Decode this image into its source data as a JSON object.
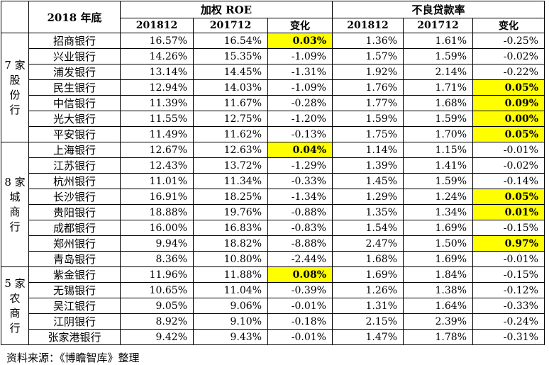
{
  "colors": {
    "highlight": "#FFFF00",
    "border": "#000000",
    "text": "#000000",
    "background": "#FFFFFF"
  },
  "table": {
    "corner_label": "",
    "year_header": "2018 年底",
    "roe_header": "加权 ROE",
    "npl_header": "不良贷款率",
    "sub_headers": [
      "201812",
      "201712",
      "变化"
    ],
    "groups": [
      {
        "name": "7家股份行",
        "label_lines": [
          "7 家",
          "股",
          "份",
          "行"
        ],
        "row_count": 7
      },
      {
        "name": "8家城商行",
        "label_lines": [
          "8 家",
          "城",
          "商",
          "行"
        ],
        "row_count": 8
      },
      {
        "name": "5家农商行",
        "label_lines": [
          "5 家",
          "农",
          "商",
          "行"
        ],
        "row_count": 5
      }
    ],
    "rows": [
      {
        "group": 0,
        "bank": "招商银行",
        "roe_201812": "16.57%",
        "roe_201712": "16.54%",
        "roe_change": "0.03%",
        "roe_change_highlight": true,
        "npl_201812": "1.36%",
        "npl_201712": "1.61%",
        "npl_change": "-0.25%",
        "npl_change_highlight": false
      },
      {
        "group": 0,
        "bank": "兴业银行",
        "roe_201812": "14.26%",
        "roe_201712": "15.35%",
        "roe_change": "-1.09%",
        "roe_change_highlight": false,
        "npl_201812": "1.57%",
        "npl_201712": "1.59%",
        "npl_change": "-0.02%",
        "npl_change_highlight": false
      },
      {
        "group": 0,
        "bank": "浦发银行",
        "roe_201812": "13.14%",
        "roe_201712": "14.45%",
        "roe_change": "-1.31%",
        "roe_change_highlight": false,
        "npl_201812": "1.92%",
        "npl_201712": "2.14%",
        "npl_change": "-0.22%",
        "npl_change_highlight": false
      },
      {
        "group": 0,
        "bank": "民生银行",
        "roe_201812": "12.94%",
        "roe_201712": "14.03%",
        "roe_change": "-1.09%",
        "roe_change_highlight": false,
        "npl_201812": "1.76%",
        "npl_201712": "1.71%",
        "npl_change": "0.05%",
        "npl_change_highlight": true
      },
      {
        "group": 0,
        "bank": "中信银行",
        "roe_201812": "11.39%",
        "roe_201712": "11.67%",
        "roe_change": "-0.28%",
        "roe_change_highlight": false,
        "npl_201812": "1.77%",
        "npl_201712": "1.68%",
        "npl_change": "0.09%",
        "npl_change_highlight": true
      },
      {
        "group": 0,
        "bank": "光大银行",
        "roe_201812": "11.55%",
        "roe_201712": "12.75%",
        "roe_change": "-1.20%",
        "roe_change_highlight": false,
        "npl_201812": "1.59%",
        "npl_201712": "1.59%",
        "npl_change": "0.00%",
        "npl_change_highlight": true
      },
      {
        "group": 0,
        "bank": "平安银行",
        "roe_201812": "11.49%",
        "roe_201712": "11.62%",
        "roe_change": "-0.13%",
        "roe_change_highlight": false,
        "npl_201812": "1.75%",
        "npl_201712": "1.70%",
        "npl_change": "0.05%",
        "npl_change_highlight": true
      },
      {
        "group": 1,
        "bank": "上海银行",
        "roe_201812": "12.67%",
        "roe_201712": "12.63%",
        "roe_change": "0.04%",
        "roe_change_highlight": true,
        "npl_201812": "1.14%",
        "npl_201712": "1.15%",
        "npl_change": "-0.01%",
        "npl_change_highlight": false
      },
      {
        "group": 1,
        "bank": "江苏银行",
        "roe_201812": "12.43%",
        "roe_201712": "13.72%",
        "roe_change": "-1.29%",
        "roe_change_highlight": false,
        "npl_201812": "1.39%",
        "npl_201712": "1.41%",
        "npl_change": "-0.02%",
        "npl_change_highlight": false
      },
      {
        "group": 1,
        "bank": "杭州银行",
        "roe_201812": "11.01%",
        "roe_201712": "11.34%",
        "roe_change": "-0.33%",
        "roe_change_highlight": false,
        "npl_201812": "1.45%",
        "npl_201712": "1.59%",
        "npl_change": "-0.14%",
        "npl_change_highlight": false
      },
      {
        "group": 1,
        "bank": "长沙银行",
        "roe_201812": "16.91%",
        "roe_201712": "18.25%",
        "roe_change": "-1.34%",
        "roe_change_highlight": false,
        "npl_201812": "1.29%",
        "npl_201712": "1.24%",
        "npl_change": "0.05%",
        "npl_change_highlight": true
      },
      {
        "group": 1,
        "bank": "贵阳银行",
        "roe_201812": "18.88%",
        "roe_201712": "19.76%",
        "roe_change": "-0.88%",
        "roe_change_highlight": false,
        "npl_201812": "1.35%",
        "npl_201712": "1.34%",
        "npl_change": "0.01%",
        "npl_change_highlight": true
      },
      {
        "group": 1,
        "bank": "成都银行",
        "roe_201812": "16.00%",
        "roe_201712": "16.83%",
        "roe_change": "-0.83%",
        "roe_change_highlight": false,
        "npl_201812": "1.54%",
        "npl_201712": "1.69%",
        "npl_change": "-0.15%",
        "npl_change_highlight": false
      },
      {
        "group": 1,
        "bank": "郑州银行",
        "roe_201812": "9.94%",
        "roe_201712": "18.82%",
        "roe_change": "-8.88%",
        "roe_change_highlight": false,
        "npl_201812": "2.47%",
        "npl_201712": "1.50%",
        "npl_change": "0.97%",
        "npl_change_highlight": true
      },
      {
        "group": 1,
        "bank": "青岛银行",
        "roe_201812": "8.36%",
        "roe_201712": "10.80%",
        "roe_change": "-2.44%",
        "roe_change_highlight": false,
        "npl_201812": "1.68%",
        "npl_201712": "1.69%",
        "npl_change": "-0.01%",
        "npl_change_highlight": false
      },
      {
        "group": 2,
        "bank": "紫金银行",
        "roe_201812": "11.96%",
        "roe_201712": "11.88%",
        "roe_change": "0.08%",
        "roe_change_highlight": true,
        "npl_201812": "1.69%",
        "npl_201712": "1.84%",
        "npl_change": "-0.15%",
        "npl_change_highlight": false
      },
      {
        "group": 2,
        "bank": "无锡银行",
        "roe_201812": "10.65%",
        "roe_201712": "11.04%",
        "roe_change": "-0.39%",
        "roe_change_highlight": false,
        "npl_201812": "1.26%",
        "npl_201712": "1.38%",
        "npl_change": "-0.12%",
        "npl_change_highlight": false
      },
      {
        "group": 2,
        "bank": "吴江银行",
        "roe_201812": "9.05%",
        "roe_201712": "9.06%",
        "roe_change": "-0.01%",
        "roe_change_highlight": false,
        "npl_201812": "1.31%",
        "npl_201712": "1.64%",
        "npl_change": "-0.33%",
        "npl_change_highlight": false
      },
      {
        "group": 2,
        "bank": "江阴银行",
        "roe_201812": "8.92%",
        "roe_201712": "9.10%",
        "roe_change": "-0.18%",
        "roe_change_highlight": false,
        "npl_201812": "2.15%",
        "npl_201712": "2.39%",
        "npl_change": "-0.24%",
        "npl_change_highlight": false
      },
      {
        "group": 2,
        "bank": "张家港银行",
        "roe_201812": "9.42%",
        "roe_201712": "9.43%",
        "roe_change": "-0.01%",
        "roe_change_highlight": false,
        "npl_201812": "1.47%",
        "npl_201712": "1.78%",
        "npl_change": "-0.31%",
        "npl_change_highlight": false
      }
    ]
  },
  "footer": {
    "source_note": "资料来源：《博瞻智库》整理"
  }
}
